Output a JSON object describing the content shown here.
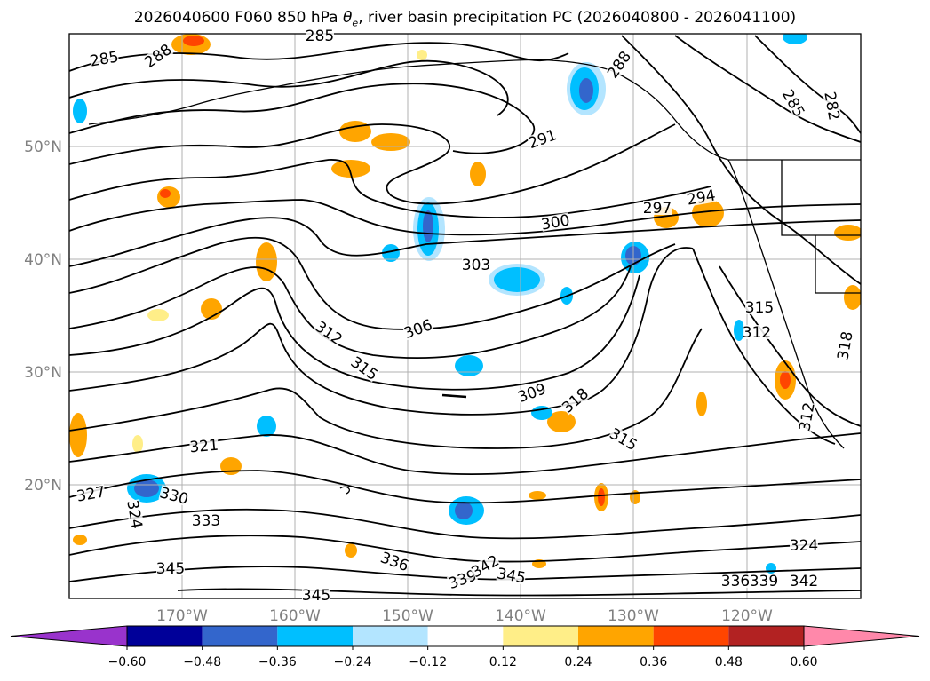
{
  "title": {
    "prefix": "2026040600 F060 850 hPa ",
    "symbol": "θ",
    "subscript": "e",
    "suffix": ", river basin precipitation PC (2026040800 - 2026041100)"
  },
  "map": {
    "longitude_labels": [
      "170°W",
      "160°W",
      "150°W",
      "140°W",
      "130°W",
      "120°W"
    ],
    "latitude_labels": [
      "50°N",
      "40°N",
      "30°N",
      "20°N"
    ],
    "contour_labels": [
      "285",
      "288",
      "285",
      "288",
      "285",
      "282",
      "291",
      "297",
      "294",
      "300",
      "303",
      "306",
      "312",
      "315",
      "315",
      "312",
      "309",
      "318",
      "315",
      "321",
      "327",
      "330",
      "324",
      "333",
      "336",
      "339",
      "342",
      "345",
      "345",
      "345",
      "336",
      "339",
      "342",
      "324",
      "312",
      "318"
    ]
  },
  "colorbar": {
    "colors": [
      "#9933cc",
      "#000099",
      "#3366cc",
      "#00bfff",
      "#b3e5ff",
      "#ffffff",
      "#ffee88",
      "#ffa500",
      "#ff4500",
      "#b22222",
      "#ff88aa"
    ],
    "tick_labels": [
      "−0.60",
      "−0.48",
      "−0.36",
      "−0.24",
      "−0.12",
      "0.12",
      "0.24",
      "0.36",
      "0.48",
      "0.60"
    ]
  }
}
